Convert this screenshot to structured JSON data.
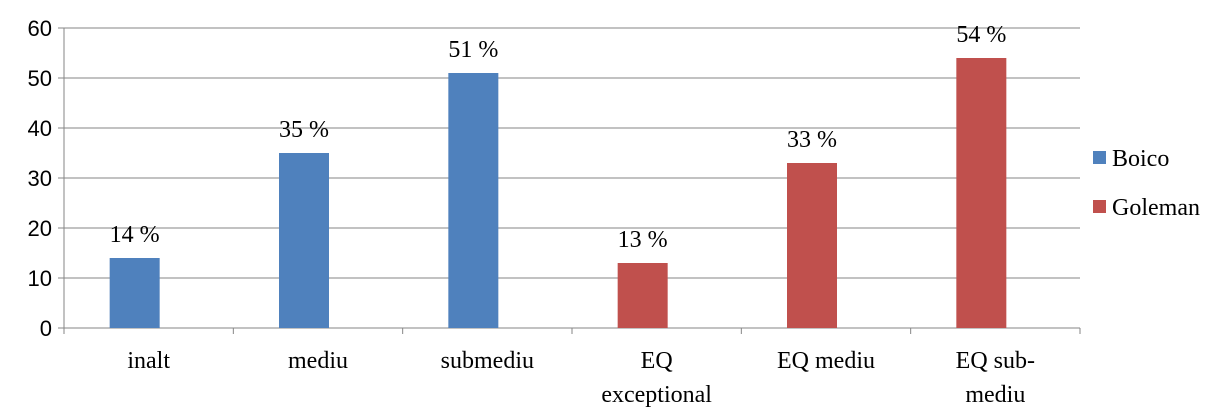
{
  "chart_data": {
    "type": "bar",
    "categories": [
      "inalt",
      "mediu",
      "submediu",
      "EQ exceptional",
      "EQ mediu",
      "EQ sub-mediu"
    ],
    "category_lines": [
      [
        "inalt"
      ],
      [
        "mediu"
      ],
      [
        "submediu"
      ],
      [
        "EQ",
        "exceptional"
      ],
      [
        "EQ mediu"
      ],
      [
        "EQ sub-",
        "mediu"
      ]
    ],
    "series": [
      {
        "name": "Boico",
        "color": "#4f81bd",
        "values": [
          14,
          35,
          51,
          null,
          null,
          null
        ],
        "labels": [
          "14 %",
          "35 %",
          "51 %",
          null,
          null,
          null
        ]
      },
      {
        "name": "Goleman",
        "color": "#c0504d",
        "values": [
          null,
          null,
          null,
          13,
          33,
          54
        ],
        "labels": [
          null,
          null,
          null,
          "13 %",
          "33 %",
          "54 %"
        ]
      }
    ],
    "ylim": [
      0,
      60
    ],
    "yticks": [
      0,
      10,
      20,
      30,
      40,
      50,
      60
    ],
    "grid": true,
    "legend": "right"
  }
}
